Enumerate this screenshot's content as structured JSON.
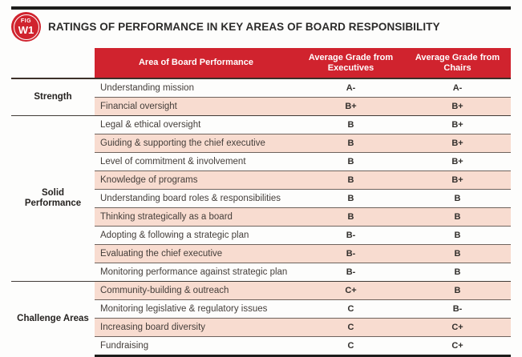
{
  "figure": {
    "badge_top": "FIG",
    "badge_bottom": "W1",
    "title": "RATINGS OF PERFORMANCE IN KEY AREAS OF BOARD RESPONSIBILITY"
  },
  "colors": {
    "accent_red": "#d0232e",
    "row_pink": "#f8dcd0",
    "rule_black": "#1d1d1b",
    "row_divider": "#6e635d"
  },
  "table": {
    "columns": [
      "Area of Board Performance",
      "Average Grade from Executives",
      "Average Grade from Chairs"
    ],
    "groups": [
      {
        "label": "Strength",
        "rows": [
          {
            "area": "Understanding mission",
            "exec": "A-",
            "chair": "A-"
          },
          {
            "area": "Financial oversight",
            "exec": "B+",
            "chair": "B+"
          }
        ]
      },
      {
        "label": "Solid Performance",
        "rows": [
          {
            "area": "Legal & ethical oversight",
            "exec": "B",
            "chair": "B+"
          },
          {
            "area": "Guiding & supporting the chief executive",
            "exec": "B",
            "chair": "B+"
          },
          {
            "area": "Level of commitment & involvement",
            "exec": "B",
            "chair": "B+"
          },
          {
            "area": "Knowledge of programs",
            "exec": "B",
            "chair": "B+"
          },
          {
            "area": "Understanding board roles & responsibilities",
            "exec": "B",
            "chair": "B"
          },
          {
            "area": "Thinking strategically as a board",
            "exec": "B",
            "chair": "B"
          },
          {
            "area": "Adopting & following a strategic plan",
            "exec": "B-",
            "chair": "B"
          },
          {
            "area": "Evaluating the chief executive",
            "exec": "B-",
            "chair": "B"
          },
          {
            "area": "Monitoring performance against strategic plan",
            "exec": "B-",
            "chair": "B"
          }
        ]
      },
      {
        "label": "Challenge Areas",
        "rows": [
          {
            "area": "Community-building & outreach",
            "exec": "C+",
            "chair": "B"
          },
          {
            "area": "Monitoring legislative & regulatory issues",
            "exec": "C",
            "chair": "B-"
          },
          {
            "area": "Increasing board diversity",
            "exec": "C",
            "chair": "C+"
          },
          {
            "area": "Fundraising",
            "exec": "C",
            "chair": "C+"
          }
        ]
      }
    ]
  }
}
